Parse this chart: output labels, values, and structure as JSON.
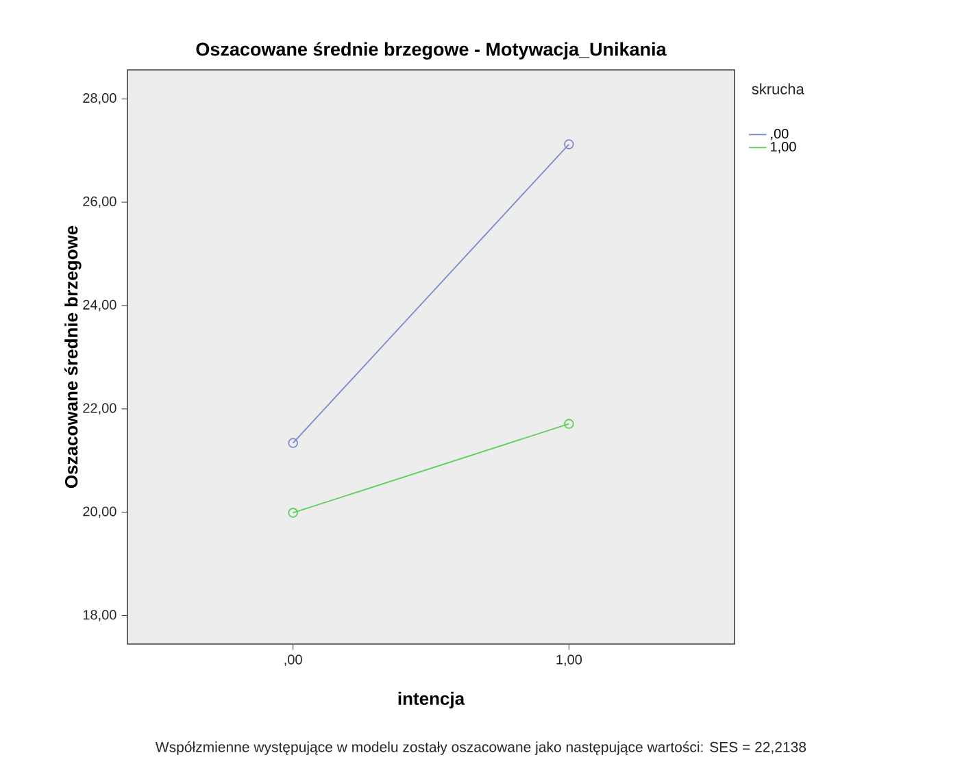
{
  "chart_data": {
    "type": "line",
    "title": "Oszacowane średnie brzegowe - Motywacja_Unikania",
    "xlabel": "intencja",
    "ylabel": "Oszacowane średnie brzegowe",
    "legend_title": "skrucha",
    "x": [
      0,
      1
    ],
    "xlim": [
      -0.6,
      1.6
    ],
    "xticks": [
      {
        "value": 0,
        "label": ",00"
      },
      {
        "value": 1,
        "label": "1,00"
      }
    ],
    "ylim": [
      17.45,
      28.56
    ],
    "yticks": [
      {
        "value": 18,
        "label": "18,00"
      },
      {
        "value": 20,
        "label": "20,00"
      },
      {
        "value": 22,
        "label": "22,00"
      },
      {
        "value": 24,
        "label": "24,00"
      },
      {
        "value": 26,
        "label": "26,00"
      },
      {
        "value": 28,
        "label": "28,00"
      }
    ],
    "series": [
      {
        "name": ",00",
        "color": "#7b8ccc",
        "values": [
          21.34,
          27.12
        ]
      },
      {
        "name": "1,00",
        "color": "#5ccf5c",
        "values": [
          19.99,
          21.71
        ]
      }
    ],
    "marker": "circle",
    "legend": "top right",
    "grid": false,
    "annotations": [
      "Współzmienne występujące w modelu zostały oszacowane jako następujące wartości: SES = 22,2138"
    ]
  }
}
